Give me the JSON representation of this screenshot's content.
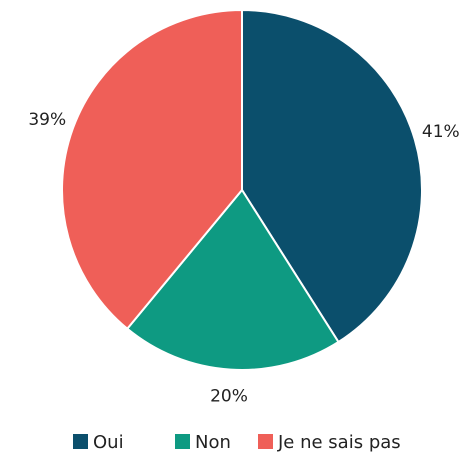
{
  "chart_data": {
    "type": "pie",
    "categories": [
      "Oui",
      "Non",
      "Je ne sais pas"
    ],
    "values": [
      41,
      20,
      39
    ],
    "value_labels": [
      "41%",
      "20%",
      "39%"
    ],
    "colors": [
      "#0b4f6c",
      "#0e9a82",
      "#ef5f58"
    ],
    "legend": "bottom"
  }
}
